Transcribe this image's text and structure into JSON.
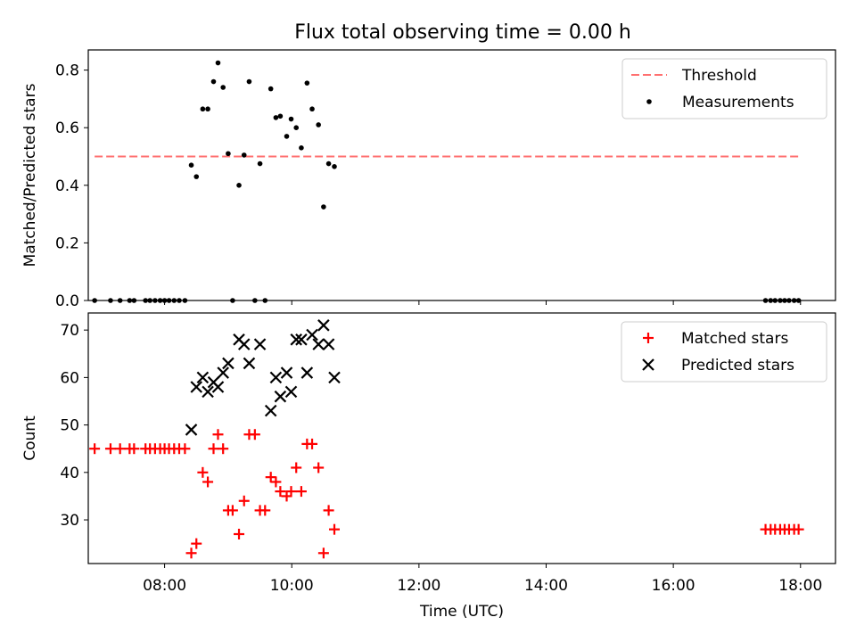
{
  "title": "Flux total observing time = 0.00 h",
  "colors": {
    "threshold": "#ff7070",
    "measurements": "#000000",
    "matched": "#ff0000",
    "predicted": "#000000"
  },
  "chart_data": [
    {
      "type": "scatter",
      "ylabel": "Matched/Predicted stars",
      "xlabel": "",
      "x_ticks": [
        "08:00",
        "10:00",
        "12:00",
        "14:00",
        "16:00",
        "18:00"
      ],
      "x_tick_hours": [
        8,
        10,
        12,
        14,
        16,
        18
      ],
      "xlim_hours": [
        6.8,
        18.55
      ],
      "ylim": [
        0,
        0.87
      ],
      "y_ticks": [
        0.0,
        0.2,
        0.4,
        0.6,
        0.8
      ],
      "y_tick_labels": [
        "0.0",
        "0.2",
        "0.4",
        "0.6",
        "0.8"
      ],
      "show_x_tick_labels": false,
      "grid": false,
      "legend": {
        "placement": "top-right",
        "entries": [
          "Threshold",
          "Measurements"
        ]
      },
      "threshold": {
        "name": "Threshold",
        "value": 0.5,
        "x_range_hours": [
          6.9,
          17.97
        ]
      },
      "series": [
        {
          "name": "Measurements",
          "x": [
            6.9,
            7.15,
            7.3,
            7.45,
            7.52,
            7.7,
            7.77,
            7.85,
            7.93,
            8.0,
            8.07,
            8.15,
            8.23,
            8.32,
            8.42,
            8.5,
            8.6,
            8.68,
            8.77,
            8.84,
            8.92,
            9.0,
            9.07,
            9.17,
            9.25,
            9.33,
            9.42,
            9.5,
            9.58,
            9.67,
            9.75,
            9.82,
            9.92,
            9.99,
            10.07,
            10.15,
            10.24,
            10.32,
            10.42,
            10.5,
            10.58,
            10.67,
            17.45,
            17.53,
            17.6,
            17.68,
            17.75,
            17.82,
            17.9,
            17.97
          ],
          "y": [
            0.0,
            0.0,
            0.0,
            0.0,
            0.0,
            0.0,
            0.0,
            0.0,
            0.0,
            0.0,
            0.0,
            0.0,
            0.0,
            0.0,
            0.47,
            0.43,
            0.665,
            0.665,
            0.76,
            0.825,
            0.74,
            0.51,
            0.0,
            0.4,
            0.505,
            0.76,
            0.0,
            0.475,
            0.0,
            0.735,
            0.635,
            0.64,
            0.57,
            0.63,
            0.6,
            0.53,
            0.755,
            0.665,
            0.61,
            0.325,
            0.475,
            0.465,
            0.0,
            0.0,
            0.0,
            0.0,
            0.0,
            0.0,
            0.0,
            0.0
          ]
        }
      ]
    },
    {
      "type": "scatter",
      "ylabel": "Count",
      "xlabel": "Time (UTC)",
      "x_ticks": [
        "08:00",
        "10:00",
        "12:00",
        "14:00",
        "16:00",
        "18:00"
      ],
      "x_tick_hours": [
        8,
        10,
        12,
        14,
        16,
        18
      ],
      "xlim_hours": [
        6.8,
        18.55
      ],
      "ylim": [
        20.8,
        73.6
      ],
      "y_ticks": [
        30,
        40,
        50,
        60,
        70
      ],
      "y_tick_labels": [
        "30",
        "40",
        "50",
        "60",
        "70"
      ],
      "show_x_tick_labels": true,
      "grid": false,
      "legend": {
        "placement": "top-right",
        "entries": [
          "Matched stars",
          "Predicted stars"
        ]
      },
      "series": [
        {
          "name": "Matched stars",
          "marker": "+",
          "x": [
            6.9,
            7.15,
            7.3,
            7.45,
            7.52,
            7.7,
            7.77,
            7.85,
            7.93,
            8.0,
            8.07,
            8.15,
            8.23,
            8.32,
            8.42,
            8.5,
            8.6,
            8.68,
            8.77,
            8.84,
            8.92,
            9.0,
            9.07,
            9.17,
            9.25,
            9.33,
            9.42,
            9.5,
            9.58,
            9.67,
            9.75,
            9.82,
            9.92,
            9.99,
            10.07,
            10.15,
            10.24,
            10.32,
            10.42,
            10.5,
            10.58,
            10.67,
            17.45,
            17.53,
            17.6,
            17.68,
            17.75,
            17.82,
            17.9,
            17.97
          ],
          "y": [
            45,
            45,
            45,
            45,
            45,
            45,
            45,
            45,
            45,
            45,
            45,
            45,
            45,
            45,
            23,
            25,
            40,
            38,
            45,
            48,
            45,
            32,
            32,
            27,
            34,
            48,
            48,
            32,
            32,
            39,
            38,
            36,
            35,
            36,
            41,
            36,
            46,
            46,
            41,
            23,
            32,
            28,
            28,
            28,
            28,
            28,
            28,
            28,
            28,
            28
          ]
        },
        {
          "name": "Predicted stars",
          "marker": "x",
          "x": [
            8.42,
            8.5,
            8.6,
            8.68,
            8.77,
            8.84,
            8.92,
            9.0,
            9.17,
            9.25,
            9.33,
            9.5,
            9.67,
            9.75,
            9.82,
            9.92,
            9.99,
            10.07,
            10.15,
            10.24,
            10.32,
            10.42,
            10.5,
            10.58,
            10.67
          ],
          "y": [
            49,
            58,
            60,
            57,
            59,
            58,
            61,
            63,
            68,
            67,
            63,
            67,
            53,
            60,
            56,
            61,
            57,
            68,
            68,
            61,
            69,
            67,
            71,
            67,
            60
          ]
        }
      ]
    }
  ]
}
